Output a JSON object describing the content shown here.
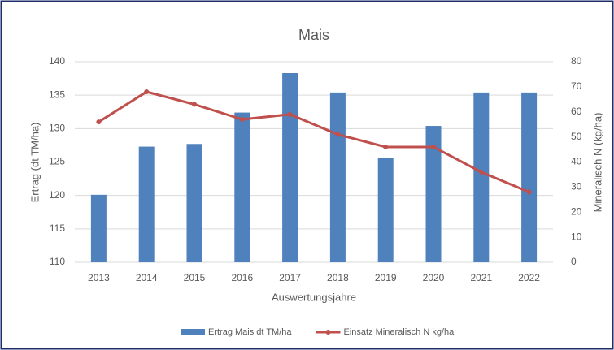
{
  "chart_data": {
    "type": "bar_line",
    "title": "Mais",
    "x_label": "Auswertungsjahre",
    "y_label": "Ertrag (dt TM/ha)",
    "y2_label": "Mineralisch N (kg/ha)",
    "categories": [
      "2013",
      "2014",
      "2015",
      "2016",
      "2017",
      "2018",
      "2019",
      "2020",
      "2021",
      "2022"
    ],
    "series": [
      {
        "name": "Ertrag Mais dt TM/ha",
        "type": "bar",
        "color": "#4f81bd",
        "values": [
          120.1,
          127.3,
          127.7,
          132.4,
          138.3,
          135.4,
          125.6,
          130.4,
          135.4,
          135.4
        ]
      },
      {
        "name": "Einsatz Mineralisch N kg/ha",
        "type": "line",
        "axis": "y2",
        "color": "#c0504d",
        "values": [
          56,
          68,
          63,
          57,
          59,
          51,
          46,
          46,
          36,
          28
        ]
      }
    ],
    "ylim": [
      110,
      140
    ],
    "yticks": [
      110,
      115,
      120,
      125,
      130,
      135,
      140
    ],
    "y2lim": [
      0,
      80
    ],
    "y2ticks": [
      0,
      10,
      20,
      30,
      40,
      50,
      60,
      70,
      80
    ],
    "grid": true,
    "legend": "bottom"
  }
}
